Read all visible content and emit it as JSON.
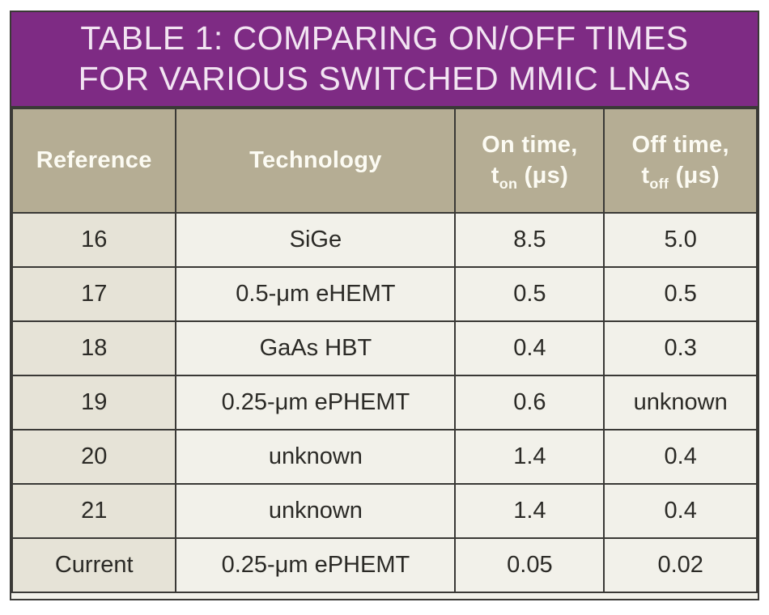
{
  "chart_data": {
    "type": "table",
    "title_line1": "TABLE 1: COMPARING ON/OFF TIMES",
    "title_line2": "FOR VARIOUS SWITCHED MMIC LNAs",
    "columns": [
      {
        "label": "Reference"
      },
      {
        "label": "Technology"
      },
      {
        "line1": "On time,",
        "symbol": "t",
        "sub": "on",
        "unit": "(μs)"
      },
      {
        "line1": "Off time,",
        "symbol": "t",
        "sub": "off",
        "unit": "(μs)"
      }
    ],
    "rows": [
      {
        "reference": "16",
        "technology": "SiGe",
        "on_time": "8.5",
        "off_time": "5.0"
      },
      {
        "reference": "17",
        "technology": "0.5-μm eHEMT",
        "on_time": "0.5",
        "off_time": "0.5"
      },
      {
        "reference": "18",
        "technology": "GaAs HBT",
        "on_time": "0.4",
        "off_time": "0.3"
      },
      {
        "reference": "19",
        "technology": "0.25-μm ePHEMT",
        "on_time": "0.6",
        "off_time": "unknown"
      },
      {
        "reference": "20",
        "technology": "unknown",
        "on_time": "1.4",
        "off_time": "0.4"
      },
      {
        "reference": "21",
        "technology": "unknown",
        "on_time": "1.4",
        "off_time": "0.4"
      },
      {
        "reference": "Current",
        "technology": "0.25-μm ePHEMT",
        "on_time": "0.05",
        "off_time": "0.02"
      }
    ]
  },
  "colors": {
    "banner_bg": "#7e2b84",
    "banner_text": "#f2e4f2",
    "header_bg": "#b5ad94",
    "header_text": "#fcfbf3",
    "ref_cell_bg": "#e6e3d7",
    "cell_bg": "#f2f1ea",
    "border_color": "#3a3936",
    "cell_text": "#2b2a26",
    "page_bg": "#ffffff"
  }
}
